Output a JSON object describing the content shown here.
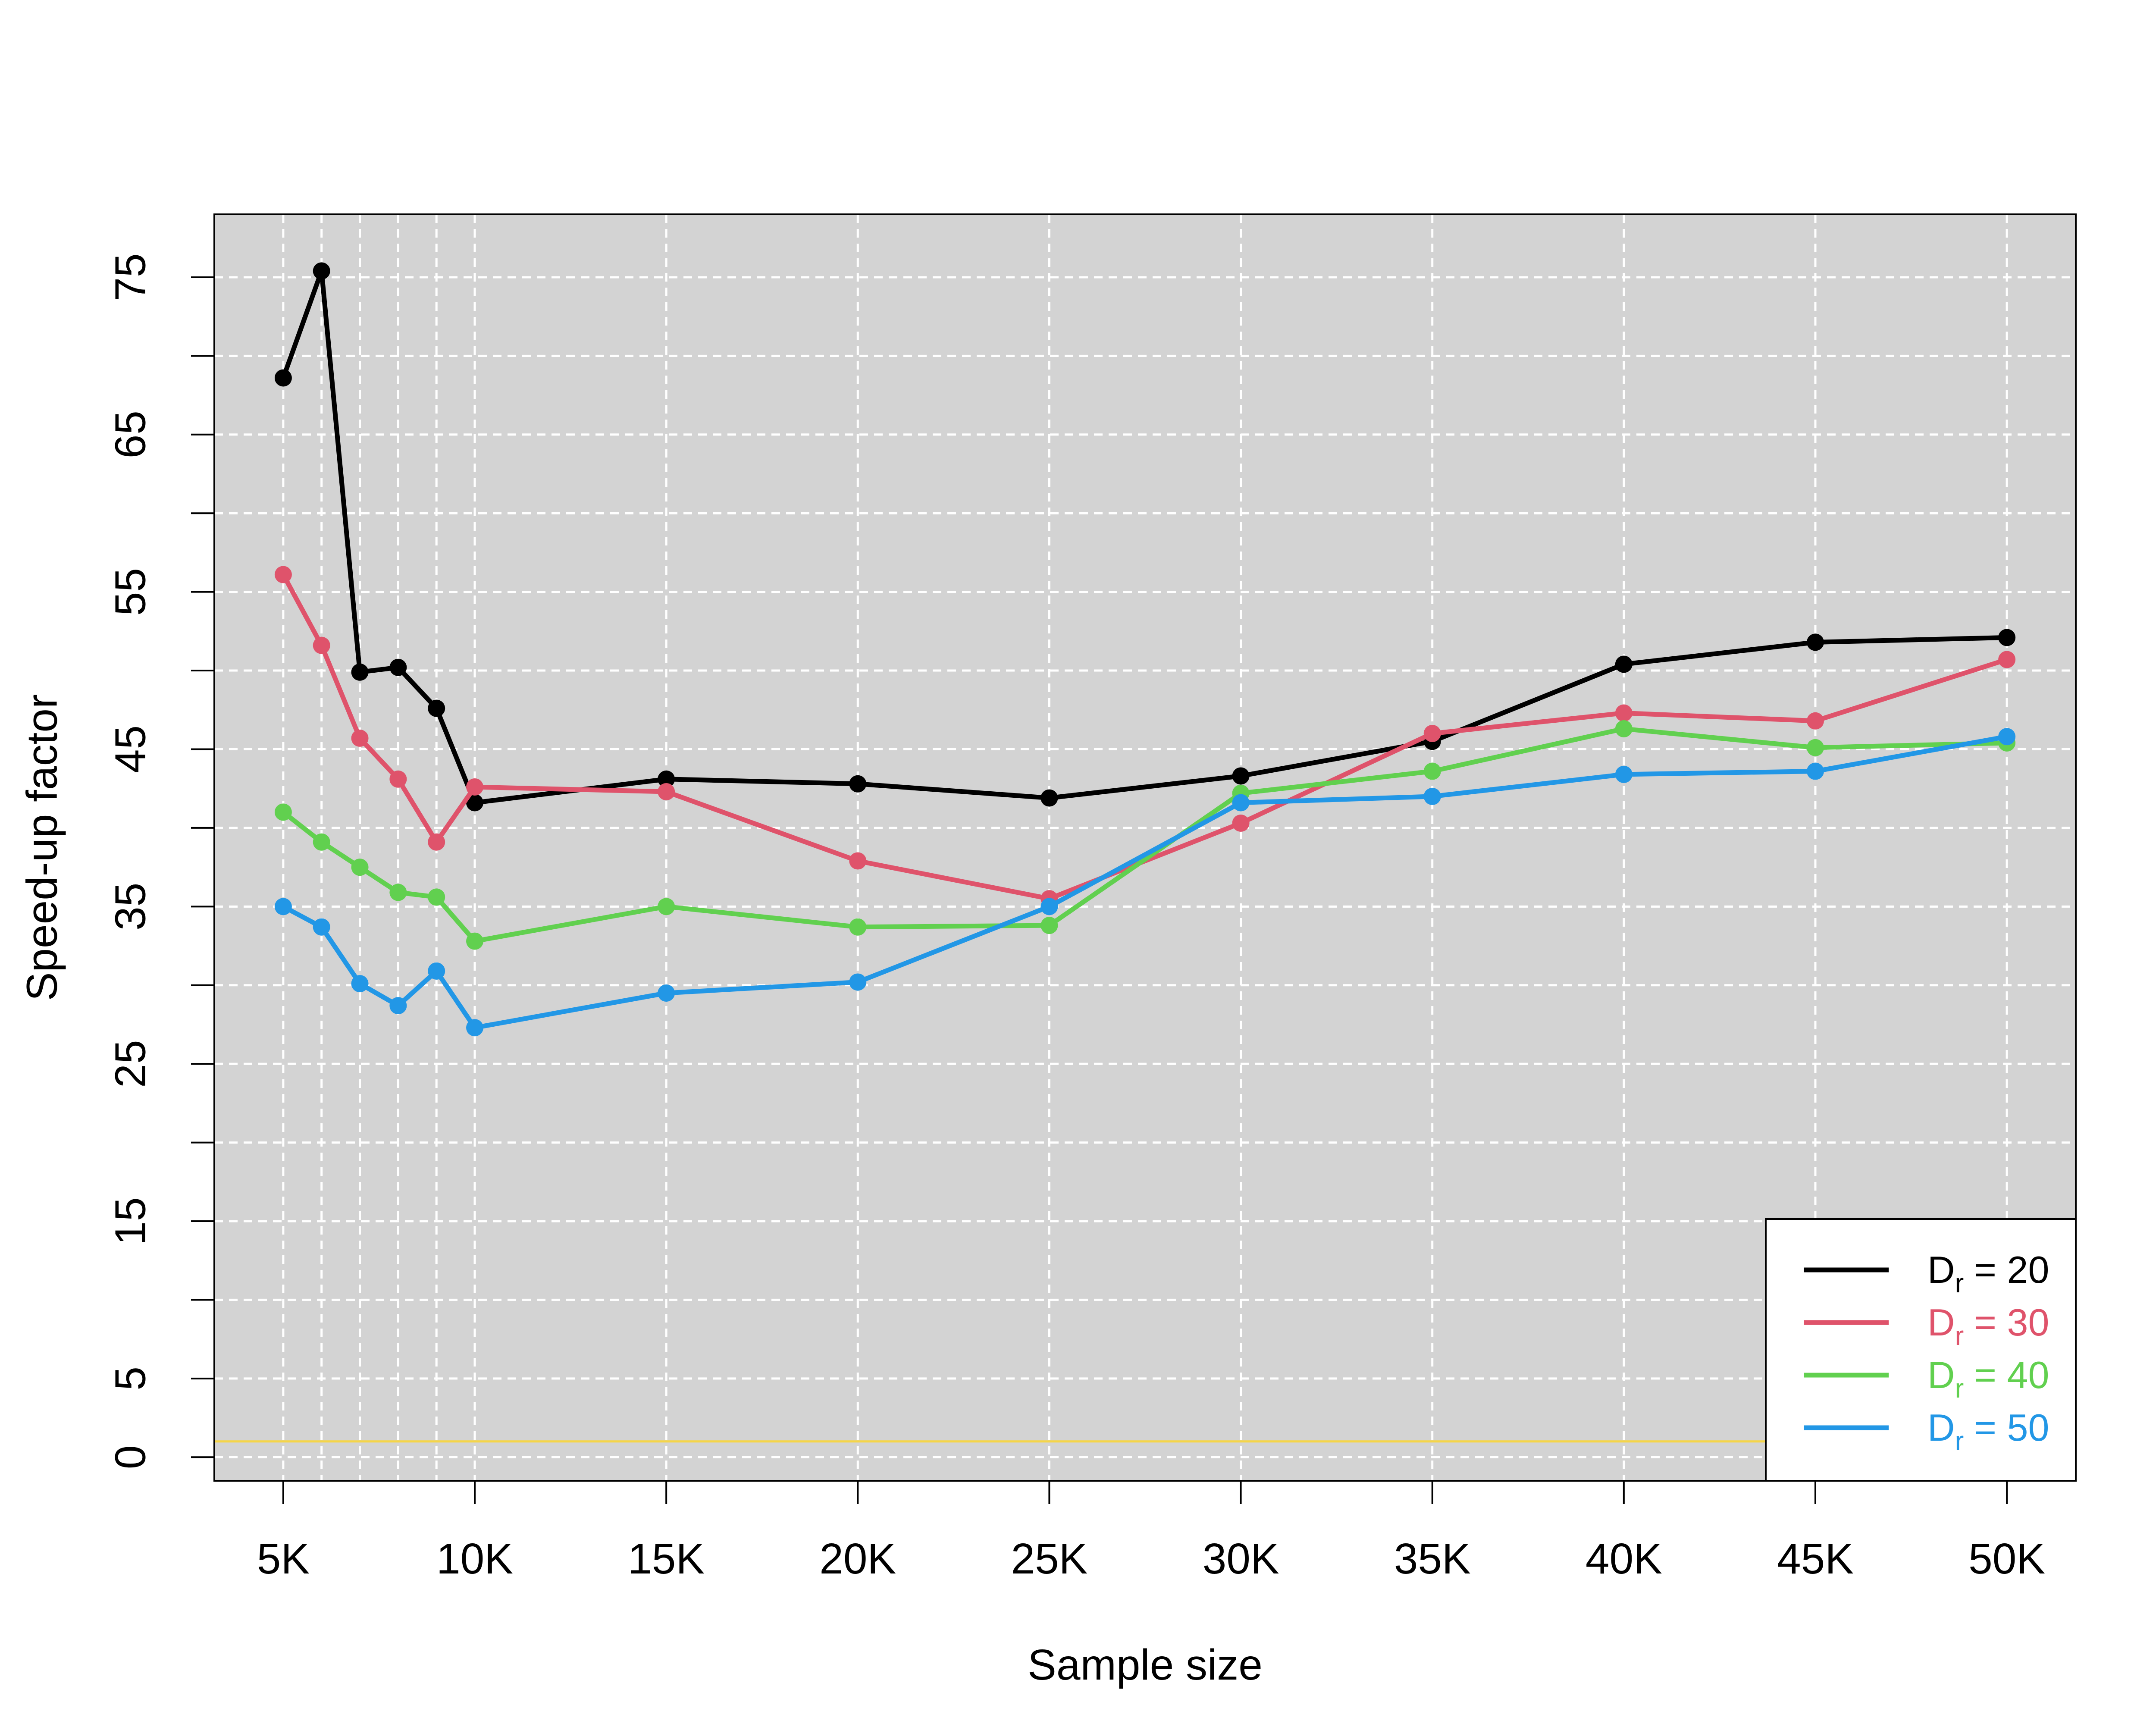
{
  "chart_data": {
    "type": "line",
    "xlabel": "Sample size",
    "ylabel": "Speed-up factor",
    "xlim": [
      3200,
      51800
    ],
    "ylim": [
      -1.5,
      79
    ],
    "x": [
      5000,
      6000,
      7000,
      8000,
      9000,
      10000,
      15000,
      20000,
      25000,
      30000,
      35000,
      40000,
      45000,
      50000
    ],
    "x_ticks": [
      5000,
      10000,
      15000,
      20000,
      25000,
      30000,
      35000,
      40000,
      45000,
      50000
    ],
    "x_tick_labels": [
      "5K",
      "10K",
      "15K",
      "20K",
      "25K",
      "30K",
      "35K",
      "40K",
      "45K",
      "50K"
    ],
    "y_ticks_labeled": [
      0,
      5,
      15,
      25,
      35,
      45,
      55,
      65,
      75
    ],
    "y_tick_labels": [
      "0",
      "5",
      "15",
      "25",
      "35",
      "45",
      "55",
      "65",
      "75"
    ],
    "y_ticks_minor": [
      10,
      20,
      30,
      40,
      50,
      60,
      70
    ],
    "x_grid": [
      5000,
      6000,
      7000,
      8000,
      9000,
      10000,
      15000,
      20000,
      25000,
      30000,
      35000,
      40000,
      45000,
      50000
    ],
    "y_grid": [
      0,
      5,
      10,
      15,
      20,
      25,
      30,
      35,
      40,
      45,
      50,
      55,
      60,
      65,
      70,
      75
    ],
    "grid": true,
    "reference_line": {
      "y": 1,
      "color": "#f5d547"
    },
    "legend_position": "bottom-right",
    "plot_background": "#d3d3d3",
    "series": [
      {
        "name": "D",
        "subscript": "r",
        "eq": " = 20",
        "color": "#000000",
        "values": [
          68.6,
          75.4,
          49.9,
          50.2,
          47.6,
          41.6,
          43.1,
          42.8,
          41.9,
          43.3,
          45.5,
          50.4,
          51.8,
          52.1
        ]
      },
      {
        "name": "D",
        "subscript": "r",
        "eq": " = 30",
        "color": "#df536b",
        "values": [
          56.1,
          51.6,
          45.7,
          43.1,
          39.1,
          42.6,
          42.3,
          37.9,
          35.5,
          40.3,
          46.0,
          47.3,
          46.8,
          50.7
        ]
      },
      {
        "name": "D",
        "subscript": "r",
        "eq": " = 40",
        "color": "#61d04f",
        "values": [
          41.0,
          39.1,
          37.5,
          35.9,
          35.6,
          32.8,
          35.0,
          33.7,
          33.8,
          42.2,
          43.6,
          46.3,
          45.1,
          45.4
        ]
      },
      {
        "name": "D",
        "subscript": "r",
        "eq": " = 50",
        "color": "#2297e6",
        "values": [
          35.0,
          33.7,
          30.1,
          28.7,
          30.9,
          27.3,
          29.5,
          30.2,
          35.0,
          41.6,
          42.0,
          43.4,
          43.6,
          45.8
        ]
      }
    ]
  }
}
